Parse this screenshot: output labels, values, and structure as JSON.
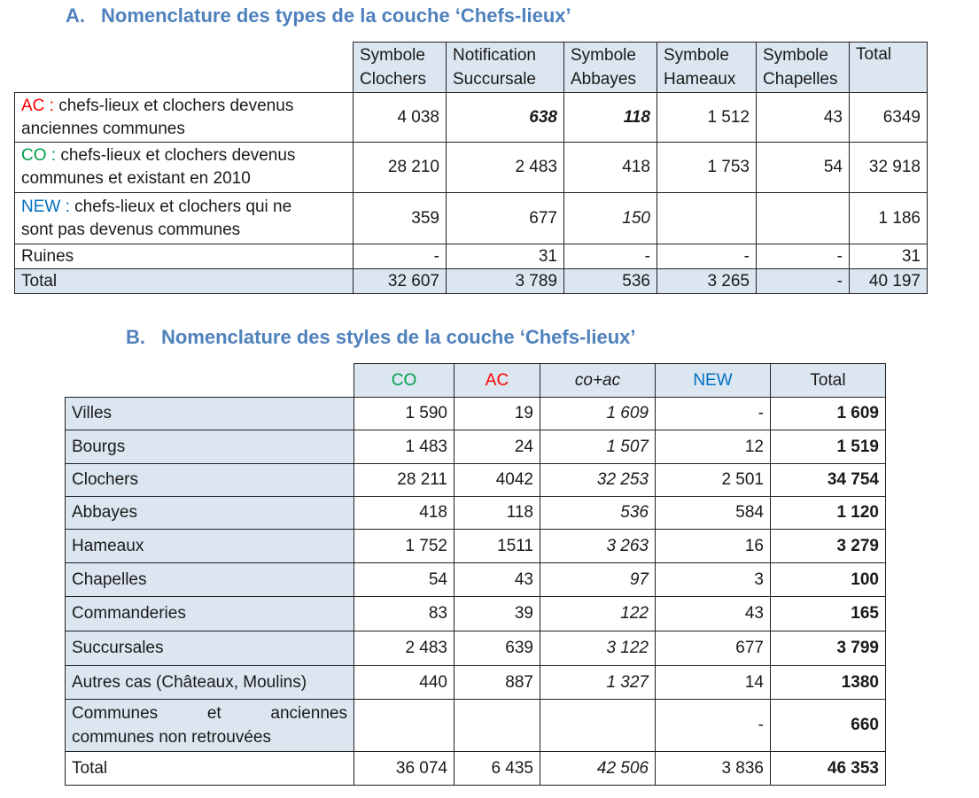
{
  "section_a": {
    "number": "A.",
    "title": "Nomenclature des types de la couche ‘Chefs-lieux’",
    "headers": [
      [
        "Symbole",
        "Clochers"
      ],
      [
        "Notification",
        "Succursale"
      ],
      [
        "Symbole",
        "Abbayes"
      ],
      [
        "Symbole",
        "Hameaux"
      ],
      [
        "Symbole",
        "Chapelles"
      ],
      [
        "Total",
        ""
      ]
    ],
    "rows": [
      {
        "code": "AC :",
        "code_color": "#ff0000",
        "label_l1": "chefs-lieux et clochers devenus",
        "label_l2": "anciennes communes",
        "values": [
          "4 038",
          "638",
          "118",
          "1 512",
          "43",
          "6349"
        ]
      },
      {
        "code": "CO :",
        "code_color": "#00a04b",
        "label_l1": "chefs-lieux et clochers devenus",
        "label_l2": "communes et existant en 2010",
        "values": [
          "28 210",
          "2 483",
          "418",
          "1 753",
          "54",
          "32 918"
        ]
      },
      {
        "code": "NEW :",
        "code_color": "#0070c0",
        "label_l1": "chefs-lieux et clochers qui ne",
        "label_l2": "sont pas devenus communes",
        "values": [
          "359",
          "677",
          "150",
          "",
          "",
          "1 186"
        ]
      },
      {
        "label": "Ruines",
        "values": [
          "-",
          "31",
          "-",
          "-",
          "-",
          "31"
        ]
      }
    ],
    "total": {
      "label": "Total",
      "values": [
        "32 607",
        "3 789",
        "536",
        "3 265",
        "-",
        "40 197"
      ]
    }
  },
  "section_b": {
    "number": "B.",
    "title": "Nomenclature des styles de la couche ‘Chefs-lieux’",
    "headers": [
      {
        "text": "CO",
        "color": "#00a04b"
      },
      {
        "text": "AC",
        "color": "#ff0000"
      },
      {
        "text": "co+ac",
        "color": "#1a1a1a"
      },
      {
        "text": "NEW",
        "color": "#0070c0"
      },
      {
        "text": "Total",
        "color": "#1a1a1a"
      }
    ],
    "rows": [
      {
        "label": "Villes",
        "values": [
          "1 590",
          "19",
          "1 609",
          "-",
          "1 609"
        ]
      },
      {
        "label": "Bourgs",
        "values": [
          "1 483",
          "24",
          "1 507",
          "12",
          "1 519"
        ]
      },
      {
        "label": "Clochers",
        "values": [
          "28 211",
          "4042",
          "32 253",
          "2 501",
          "34 754"
        ]
      },
      {
        "label": "Abbayes",
        "values": [
          "418",
          "118",
          "536",
          "584",
          "1 120"
        ]
      },
      {
        "label": "Hameaux",
        "values": [
          "1 752",
          "1511",
          "3 263",
          "16",
          "3 279"
        ]
      },
      {
        "label": "Chapelles",
        "values": [
          "54",
          "43",
          "97",
          "3",
          "100"
        ]
      },
      {
        "label": "Commanderies",
        "values": [
          "83",
          "39",
          "122",
          "43",
          "165"
        ]
      },
      {
        "label": "Succursales",
        "values": [
          "2 483",
          "639",
          "3 122",
          "677",
          "3 799"
        ]
      },
      {
        "label": "Autres cas (Châteaux, Moulins)",
        "values": [
          "440",
          "887",
          "1 327",
          "14",
          "1380"
        ]
      },
      {
        "label_l1": "Communes et anciennes",
        "label_l2": "communes non retrouvées",
        "values": [
          "",
          "",
          "",
          "-",
          "660"
        ]
      },
      {
        "label": "Total",
        "values": [
          "36 074",
          "6 435",
          "42 506",
          "3 836",
          "46 353"
        ]
      }
    ]
  }
}
